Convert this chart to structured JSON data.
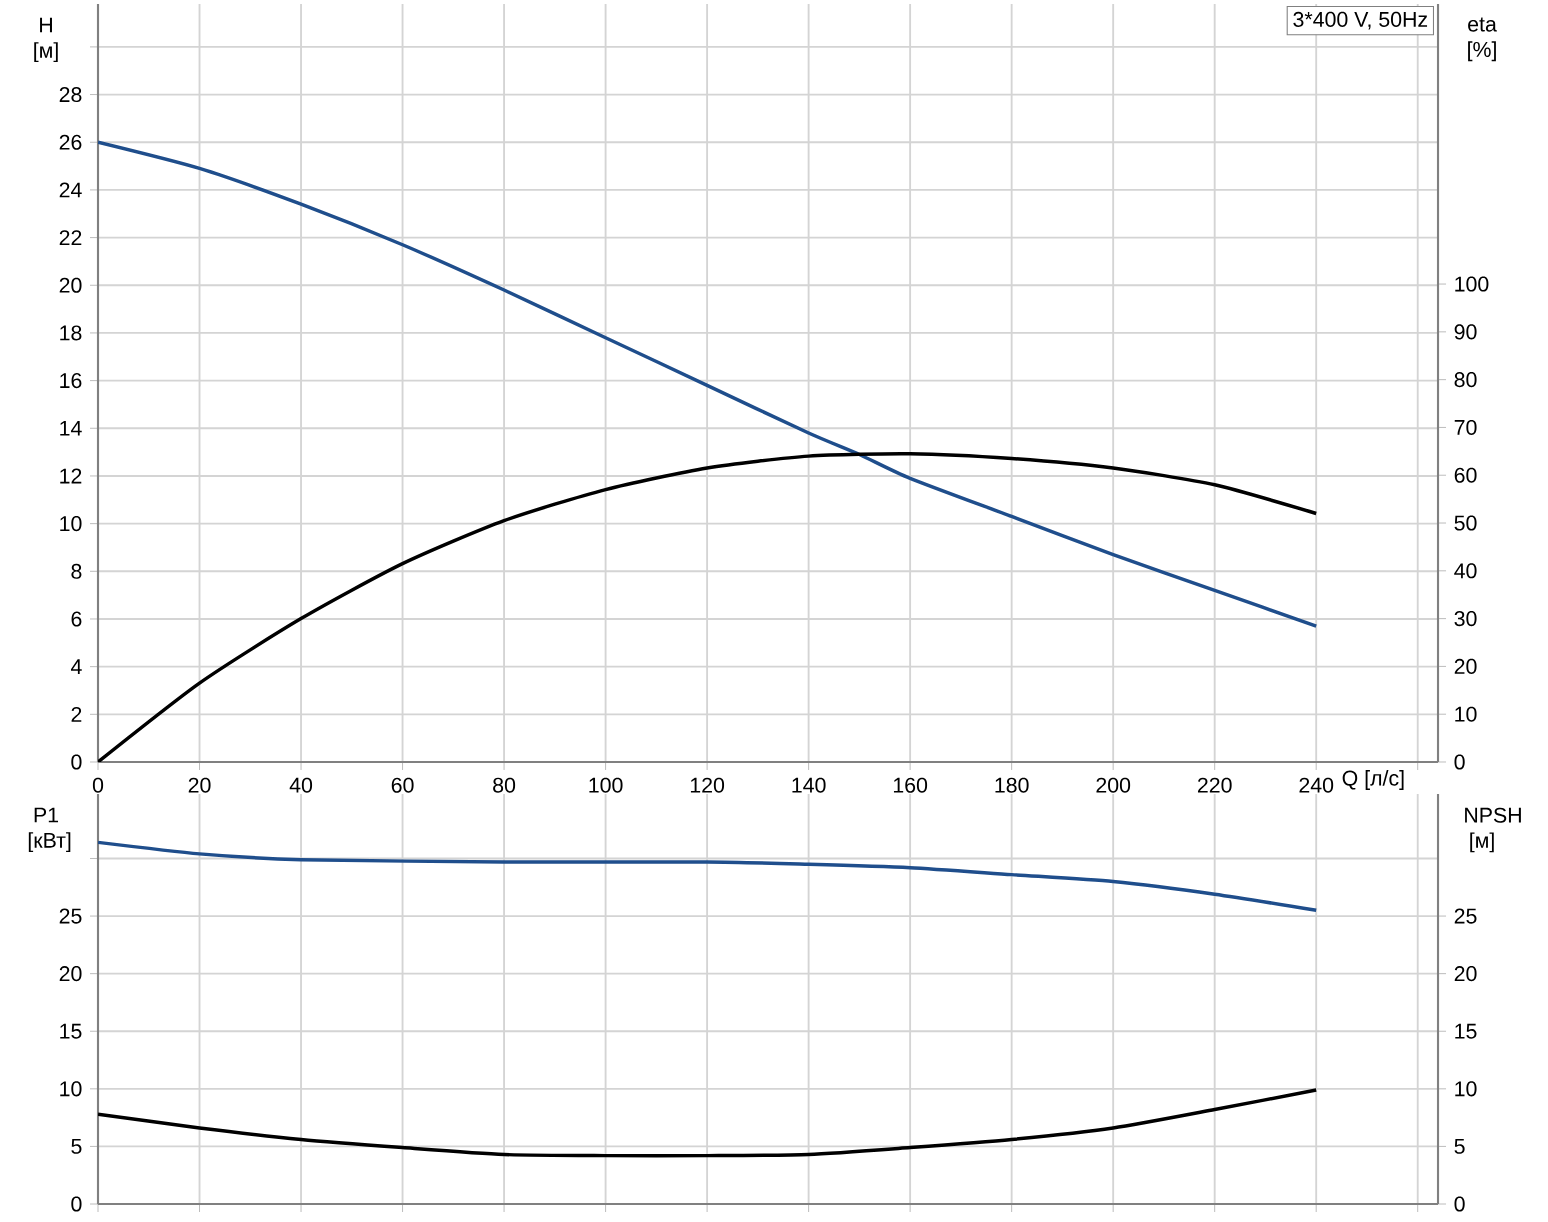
{
  "chart_data": [
    {
      "type": "line",
      "xlabel": "Q [л/с]",
      "ylabel": "H [м]",
      "y2label": "eta [%]",
      "grid": true,
      "annotations": [
        "3*400 V, 50Hz"
      ],
      "xlim": [
        0,
        264
      ],
      "xticks": [
        0,
        20,
        40,
        60,
        80,
        100,
        120,
        140,
        160,
        180,
        200,
        220,
        240,
        {
          "value": 260,
          "label": null
        }
      ],
      "ylim": [
        0,
        31.8
      ],
      "yticks": [
        0,
        2,
        4,
        6,
        8,
        10,
        12,
        14,
        16,
        18,
        20,
        22,
        24,
        26,
        28,
        {
          "value": 30,
          "label": null
        }
      ],
      "y2lim": [
        0,
        158.6
      ],
      "y2ticks": [
        0,
        10,
        20,
        30,
        40,
        50,
        60,
        70,
        80,
        90,
        100
      ],
      "series": [
        {
          "color": "#1f4e8c",
          "x": [
            0,
            20,
            40,
            60,
            80,
            100,
            120,
            140,
            150,
            160,
            180,
            200,
            220,
            240
          ],
          "values": [
            26,
            24.9,
            23.4,
            21.7,
            19.8,
            17.8,
            15.8,
            13.8,
            12.9,
            11.9,
            10.3,
            8.7,
            7.2,
            5.7
          ]
        },
        {
          "color": "#000000",
          "axis": "y2",
          "x": [
            0,
            20,
            40,
            60,
            80,
            100,
            120,
            140,
            160,
            180,
            200,
            220,
            240
          ],
          "values": [
            0,
            16.5,
            30,
            41.5,
            50.5,
            57,
            61.5,
            64,
            64.5,
            63.5,
            61.5,
            58,
            52
          ]
        }
      ]
    },
    {
      "type": "line",
      "ylabel": "P1 [кВт]",
      "y2label": "NPSH [м]",
      "grid": true,
      "tick_labels": "y",
      "xlim": [
        0,
        264
      ],
      "xticks": [
        0,
        20,
        40,
        60,
        80,
        100,
        120,
        140,
        160,
        180,
        200,
        220,
        240,
        260
      ],
      "ylim": [
        0,
        35.6
      ],
      "yticks": [
        0,
        5,
        10,
        15,
        20,
        25,
        {
          "value": 30,
          "label": null
        }
      ],
      "y2lim": [
        0,
        35.6
      ],
      "y2ticks": [
        0,
        5,
        10,
        15,
        20,
        25
      ],
      "series": [
        {
          "color": "#1f4e8c",
          "x": [
            0,
            20,
            40,
            80,
            120,
            140,
            160,
            180,
            200,
            220,
            240
          ],
          "values": [
            31.4,
            30.4,
            29.9,
            29.7,
            29.7,
            29.5,
            29.2,
            28.6,
            28.0,
            26.9,
            25.5
          ]
        },
        {
          "color": "#000000",
          "axis": "y2",
          "x": [
            0,
            20,
            40,
            60,
            80,
            100,
            120,
            140,
            160,
            180,
            200,
            220,
            240
          ],
          "values": [
            7.8,
            6.6,
            5.6,
            4.9,
            4.3,
            4.2,
            4.2,
            4.3,
            4.9,
            5.6,
            6.6,
            8.2,
            9.9
          ]
        }
      ]
    }
  ]
}
